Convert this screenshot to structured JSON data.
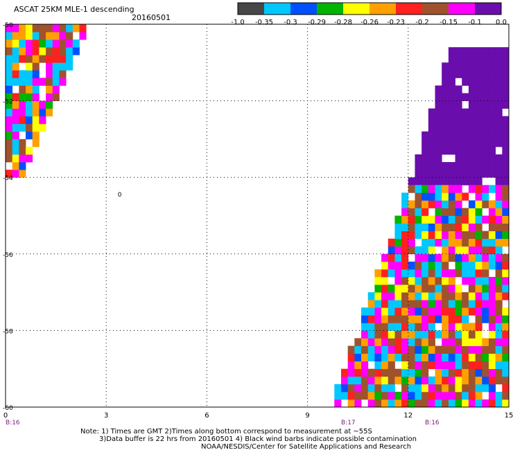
{
  "header": {
    "title": "ASCAT 25KM MLE-1 descending",
    "date": "20160501"
  },
  "colorbar": {
    "colors": [
      "#474747",
      "#00c8ff",
      "#0050ff",
      "#00b400",
      "#ffff00",
      "#ffa000",
      "#ff2020",
      "#a0522d",
      "#ff00ff",
      "#6a0dad"
    ],
    "labels": [
      "-1.0",
      "-0.35",
      "-0.3",
      "-0.29",
      "-0.28",
      "-0.26",
      "-0.23",
      "-0.2",
      "-0.15",
      "-0.1",
      "0.0"
    ]
  },
  "axes": {
    "x_ticks": [
      "0",
      "3",
      "6",
      "9",
      "12",
      "15"
    ],
    "x_range": [
      0,
      15
    ],
    "y_ticks": [
      "-50",
      "-52",
      "-54",
      "-56",
      "-58",
      "-60"
    ],
    "y_range": [
      -60,
      -50
    ],
    "grid": true
  },
  "time_markers": [
    {
      "label": "B:16",
      "x": 0
    },
    {
      "label": "B:17",
      "x": 10
    },
    {
      "label": "B:16",
      "x": 12.5
    }
  ],
  "annotations": [
    {
      "text": "0",
      "x": 3.4,
      "y": -54.5
    }
  ],
  "note": {
    "line1": "Note: 1) Times are GMT 2)Times along bottom correspond to measurement at ~55S",
    "line2": "3)Data buffer is 22 hrs from 20160501 4) Black wind barbs indicate possible contamination",
    "line3": "NOAA/NESDIS/Center for Satellite Applications and Research"
  },
  "chart_data": {
    "type": "heatmap",
    "xlim": [
      0,
      15
    ],
    "ylim": [
      -60,
      -50
    ],
    "swaths": [
      {
        "name": "",
        "polygon": [
          [
            0,
            -50
          ],
          [
            2.5,
            -50
          ],
          [
            0.5,
            -54
          ],
          [
            0,
            -54
          ]
        ],
        "range": [
          -0.35,
          -0.1
        ]
      },
      {
        "name": "",
        "polygon": [
          [
            13.3,
            -50.5
          ],
          [
            15,
            -50.5
          ],
          [
            15,
            -54.2
          ],
          [
            12,
            -54.2
          ]
        ],
        "range": [
          -0.1,
          0.0
        ]
      },
      {
        "name": "",
        "polygon": [
          [
            12,
            -54.2
          ],
          [
            15,
            -54.2
          ],
          [
            15,
            -60
          ],
          [
            9.7,
            -60
          ]
        ],
        "range": [
          -0.35,
          -0.1
        ]
      }
    ]
  }
}
